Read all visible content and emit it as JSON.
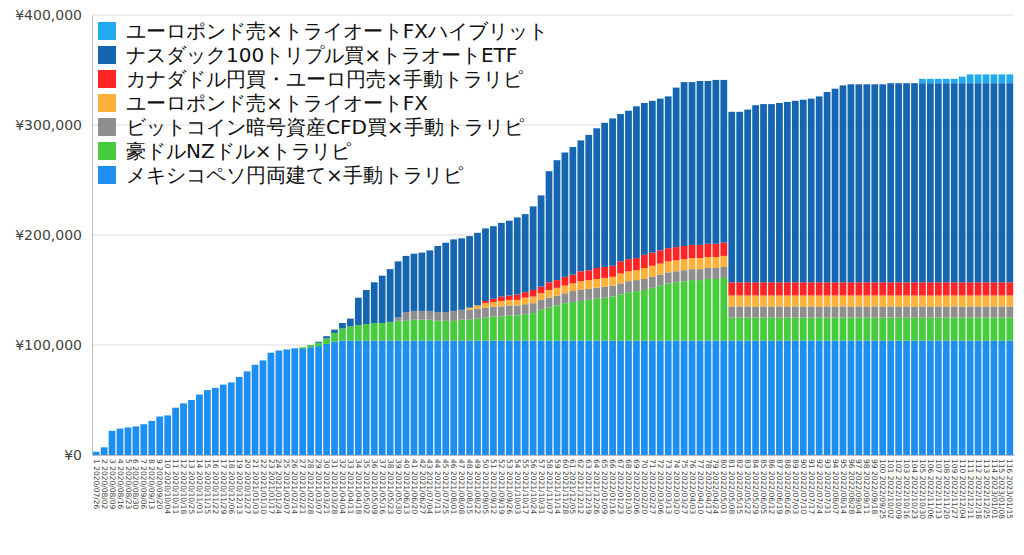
{
  "chart_data": {
    "type": "bar",
    "stacked": true,
    "grid": true,
    "legend": "top-left",
    "ylim": [
      0,
      400000
    ],
    "yticks": [
      {
        "value": 0,
        "label": "¥0"
      },
      {
        "value": 100000,
        "label": "¥100,000"
      },
      {
        "value": 200000,
        "label": "¥200,000"
      },
      {
        "value": 300000,
        "label": "¥300,000"
      },
      {
        "value": 400000,
        "label": "¥400,000"
      }
    ],
    "categories": [
      "1 2020/07/26",
      "2 2020/08/02",
      "3 2020/08/09",
      "4 2020/08/16",
      "5 2020/08/23",
      "6 2020/08/30",
      "7 2020/09/06",
      "8 2020/09/13",
      "9 2020/09/20",
      "10 2020/10/04",
      "11 2020/10/11",
      "12 2020/10/18",
      "13 2020/10/25",
      "14 2020/11/01",
      "15 2020/11/15",
      "16 2020/11/22",
      "17 2020/11/29",
      "18 2020/12/06",
      "19 2020/12/13",
      "20 2020/12/27",
      "21 2021/01/03",
      "22 2021/01/10",
      "23 2021/01/17",
      "24 2021/01/24",
      "25 2021/02/07",
      "26 2021/02/14",
      "27 2021/02/21",
      "28 2021/02/28",
      "29 2021/03/07",
      "30 2021/03/21",
      "31 2021/03/28",
      "32 2021/04/04",
      "33 2021/04/11",
      "34 2021/04/18",
      "35 2021/05/02",
      "36 2021/05/09",
      "37 2021/05/16",
      "38 2021/05/23",
      "39 2021/05/30",
      "40 2021/06/13",
      "41 2021/06/20",
      "42 2021/06/27",
      "43 2021/07/04",
      "44 2021/07/11",
      "45 2021/07/25",
      "46 2021/08/01",
      "47 2021/08/08",
      "48 2021/08/15",
      "49 2021/08/22",
      "50 2021/09/05",
      "51 2021/09/12",
      "52 2021/09/19",
      "53 2021/09/26",
      "54 2021/10/03",
      "55 2021/10/17",
      "56 2021/10/24",
      "57 2021/10/31",
      "58 2021/11/07",
      "59 2021/11/14",
      "60 2021/11/28",
      "61 2021/12/05",
      "62 2021/12/12",
      "63 2021/12/19",
      "64 2021/12/26",
      "65 2022/01/09",
      "66 2022/01/16",
      "67 2022/01/23",
      "68 2022/01/30",
      "69 2022/02/06",
      "70 2022/02/20",
      "71 2022/02/27",
      "72 2022/03/06",
      "73 2022/03/13",
      "74 2022/03/20",
      "75 2022/03/27",
      "76 2022/04/03",
      "77 2022/04/10",
      "78 2022/04/17",
      "79 2022/04/24",
      "80 2022/05/01",
      "81 2022/05/08",
      "82 2022/05/15",
      "83 2022/05/22",
      "84 2022/05/29",
      "85 2022/06/05",
      "86 2022/06/12",
      "87 2022/06/19",
      "88 2022/06/26",
      "89 2022/07/03",
      "90 2022/07/10",
      "91 2022/07/17",
      "92 2022/07/24",
      "93 2022/07/31",
      "94 2022/08/07",
      "95 2022/08/14",
      "96 2022/08/28",
      "97 2022/09/04",
      "98 2022/09/11",
      "99 2022/09/18",
      "100 2022/09/25",
      "101 2022/10/02",
      "102 2022/10/09",
      "103 2022/10/16",
      "104 2022/10/23",
      "105 2022/10/30",
      "106 2022/11/06",
      "107 2022/11/13",
      "108 2022/11/20",
      "109 2022/11/27",
      "110 2022/12/04",
      "111 2022/12/11",
      "112 2022/12/18",
      "113 2022/12/25",
      "114 2023/01/01",
      "115 2023/01/08",
      "116 2023/01/15"
    ],
    "series": [
      {
        "name": "ユーロポンド売×トライオートFXハイブリット",
        "color": "#22aaee",
        "values": [
          0,
          0,
          0,
          0,
          0,
          0,
          0,
          0,
          0,
          0,
          0,
          0,
          0,
          0,
          0,
          0,
          0,
          0,
          0,
          0,
          0,
          0,
          0,
          0,
          0,
          0,
          0,
          0,
          0,
          0,
          0,
          0,
          0,
          0,
          0,
          0,
          0,
          0,
          0,
          0,
          0,
          0,
          0,
          0,
          0,
          0,
          0,
          0,
          0,
          0,
          0,
          0,
          0,
          0,
          0,
          0,
          0,
          0,
          0,
          0,
          0,
          0,
          0,
          0,
          0,
          0,
          0,
          0,
          0,
          0,
          0,
          0,
          0,
          0,
          0,
          0,
          0,
          0,
          0,
          0,
          0,
          0,
          0,
          0,
          0,
          0,
          0,
          0,
          0,
          0,
          0,
          0,
          0,
          0,
          0,
          0,
          0,
          0,
          0,
          0,
          0,
          0,
          0,
          0,
          4000,
          4000,
          4000,
          4000,
          4000,
          6000,
          8000,
          8000,
          8000,
          8000,
          8000,
          8000
        ]
      },
      {
        "name": "ナスダック100トリプル買×トラオートETF",
        "color": "#1565b0",
        "values": [
          0,
          0,
          0,
          0,
          0,
          0,
          0,
          0,
          0,
          0,
          0,
          0,
          0,
          0,
          0,
          0,
          0,
          0,
          0,
          0,
          0,
          0,
          0,
          0,
          0,
          0,
          0,
          0,
          1000,
          2000,
          3000,
          5000,
          7000,
          25000,
          31000,
          37000,
          43000,
          48000,
          51000,
          51000,
          52000,
          53000,
          55000,
          60000,
          63000,
          65000,
          65000,
          65000,
          66000,
          66000,
          66000,
          67000,
          68000,
          70000,
          71000,
          76000,
          83000,
          101000,
          109000,
          113000,
          116000,
          119000,
          123000,
          127000,
          131000,
          134000,
          134000,
          135000,
          138000,
          138000,
          138000,
          138000,
          138000,
          145000,
          149000,
          148000,
          149000,
          148000,
          149000,
          148000,
          155000,
          155000,
          157000,
          161000,
          162000,
          162000,
          163000,
          164000,
          165000,
          166000,
          167000,
          169000,
          173000,
          176000,
          179000,
          180000,
          180000,
          180000,
          180000,
          180000,
          181000,
          181000,
          181000,
          181000,
          181000,
          181000,
          181000,
          181000,
          181000,
          181000,
          181000,
          181000,
          181000,
          181000,
          181000,
          181000
        ]
      },
      {
        "name": "カナダドル円買・ユーロ円売×手動トラリピ",
        "color": "#ff2525",
        "values": [
          0,
          0,
          0,
          0,
          0,
          0,
          0,
          0,
          0,
          0,
          0,
          0,
          0,
          0,
          0,
          0,
          0,
          0,
          0,
          0,
          0,
          0,
          0,
          0,
          0,
          0,
          0,
          0,
          0,
          0,
          0,
          0,
          0,
          0,
          0,
          0,
          0,
          0,
          0,
          0,
          0,
          0,
          0,
          0,
          0,
          0,
          0,
          0,
          0,
          2000,
          3000,
          4000,
          4000,
          5000,
          5000,
          6000,
          6000,
          7000,
          7000,
          8000,
          8000,
          9000,
          9000,
          10000,
          10000,
          10000,
          11000,
          11000,
          11000,
          12000,
          12000,
          12000,
          12000,
          12000,
          12000,
          12000,
          12000,
          12000,
          12000,
          12000,
          12000,
          12000,
          12000,
          12000,
          12000,
          12000,
          12000,
          12000,
          12000,
          12000,
          12000,
          12000,
          12000,
          12000,
          12000,
          12000,
          12000,
          12000,
          12000,
          12000,
          12000,
          12000,
          12000,
          12000,
          12000,
          12000,
          12000,
          12000,
          12000,
          12000,
          12000,
          12000,
          12000,
          12000,
          12000,
          12000
        ]
      },
      {
        "name": "ユーロポンド売×トライオートFX",
        "color": "#fdb03a",
        "values": [
          0,
          0,
          0,
          0,
          0,
          0,
          0,
          0,
          0,
          0,
          0,
          0,
          0,
          0,
          0,
          0,
          0,
          0,
          0,
          0,
          0,
          0,
          0,
          0,
          0,
          0,
          0,
          0,
          0,
          0,
          0,
          0,
          0,
          0,
          0,
          0,
          0,
          0,
          0,
          0,
          0,
          0,
          0,
          0,
          0,
          0,
          0,
          2000,
          3000,
          4000,
          4000,
          5000,
          5000,
          5000,
          6000,
          6000,
          6000,
          7000,
          7000,
          7000,
          7000,
          8000,
          8000,
          8000,
          8000,
          8000,
          9000,
          9000,
          9000,
          10000,
          10000,
          10000,
          10000,
          10000,
          10000,
          10000,
          10000,
          10000,
          10000,
          10000,
          10000,
          10000,
          10000,
          10000,
          10000,
          10000,
          10000,
          10000,
          10000,
          10000,
          10000,
          10000,
          10000,
          10000,
          10000,
          10000,
          10000,
          10000,
          10000,
          10000,
          10000,
          10000,
          10000,
          10000,
          10000,
          10000,
          10000,
          10000,
          10000,
          10000,
          10000,
          10000,
          10000,
          10000,
          10000,
          10000
        ]
      },
      {
        "name": "ビットコイン暗号資産CFD買×手動トラリピ",
        "color": "#8e8e8e",
        "values": [
          0,
          0,
          0,
          0,
          0,
          0,
          0,
          0,
          0,
          0,
          0,
          0,
          0,
          0,
          0,
          0,
          0,
          0,
          0,
          0,
          0,
          0,
          0,
          0,
          0,
          0,
          0,
          0,
          0,
          0,
          0,
          0,
          0,
          0,
          0,
          0,
          0,
          0,
          3000,
          8000,
          8000,
          8000,
          8000,
          8000,
          8000,
          9000,
          9000,
          9000,
          9000,
          9000,
          9000,
          9000,
          9000,
          9000,
          9000,
          9000,
          9000,
          9000,
          9000,
          9000,
          10000,
          10000,
          10000,
          10000,
          10000,
          10000,
          10000,
          10000,
          10000,
          10000,
          10000,
          10000,
          10000,
          10000,
          10000,
          10000,
          10000,
          10000,
          10000,
          10000,
          10000,
          10000,
          10000,
          10000,
          10000,
          10000,
          10000,
          10000,
          10000,
          10000,
          10000,
          10000,
          10000,
          10000,
          10000,
          10000,
          10000,
          10000,
          10000,
          10000,
          10000,
          10000,
          10000,
          10000,
          10000,
          10000,
          10000,
          10000,
          10000,
          10000,
          10000,
          10000,
          10000,
          10000,
          10000,
          10000
        ]
      },
      {
        "name": "豪ドルNZドル×トラリピ",
        "color": "#47cc3d",
        "values": [
          0,
          0,
          0,
          0,
          0,
          0,
          0,
          0,
          0,
          0,
          0,
          0,
          0,
          0,
          0,
          0,
          0,
          0,
          0,
          0,
          0,
          0,
          0,
          0,
          0,
          0,
          1000,
          2000,
          3000,
          5000,
          8000,
          11000,
          13000,
          14000,
          15000,
          16000,
          16000,
          17000,
          18000,
          18000,
          19000,
          19000,
          19000,
          18000,
          18000,
          18000,
          19000,
          19000,
          20000,
          21000,
          22000,
          22000,
          23000,
          23000,
          24000,
          25000,
          28000,
          30000,
          32000,
          34000,
          35000,
          36000,
          37000,
          38000,
          39000,
          40000,
          42000,
          44000,
          45000,
          46000,
          48000,
          50000,
          52000,
          53000,
          54000,
          55000,
          55000,
          56000,
          56000,
          57000,
          21000,
          21000,
          21000,
          21000,
          21000,
          21000,
          21000,
          21000,
          21000,
          21000,
          21000,
          21000,
          21000,
          21000,
          21000,
          21000,
          21000,
          21000,
          21000,
          21000,
          21000,
          21000,
          21000,
          21000,
          21000,
          21000,
          21000,
          21000,
          21000,
          21000,
          21000,
          21000,
          21000,
          21000,
          21000,
          21000
        ]
      },
      {
        "name": "メキシコペソ円両建て×手動トラリピ",
        "color": "#1e8ff0",
        "values": [
          3000,
          7000,
          22000,
          24000,
          25000,
          26000,
          28000,
          31000,
          35000,
          36000,
          43000,
          47000,
          50000,
          55000,
          59000,
          61000,
          64000,
          66000,
          71000,
          76000,
          82000,
          86000,
          93000,
          95000,
          96000,
          97000,
          97000,
          98000,
          99000,
          101000,
          103000,
          104000,
          104000,
          104000,
          104000,
          104000,
          104000,
          104000,
          104000,
          104000,
          104000,
          104000,
          104000,
          104000,
          104000,
          104000,
          104000,
          104000,
          104000,
          104000,
          104000,
          104000,
          104000,
          104000,
          104000,
          104000,
          104000,
          104000,
          104000,
          104000,
          104000,
          104000,
          104000,
          104000,
          104000,
          104000,
          104000,
          104000,
          104000,
          104000,
          104000,
          104000,
          104000,
          104000,
          104000,
          104000,
          104000,
          104000,
          104000,
          104000,
          104000,
          104000,
          104000,
          104000,
          104000,
          104000,
          104000,
          104000,
          104000,
          104000,
          104000,
          104000,
          104000,
          104000,
          104000,
          104000,
          104000,
          104000,
          104000,
          104000,
          104000,
          104000,
          104000,
          104000,
          104000,
          104000,
          104000,
          104000,
          104000,
          104000,
          104000,
          104000,
          104000,
          104000,
          104000,
          104000
        ]
      }
    ]
  }
}
